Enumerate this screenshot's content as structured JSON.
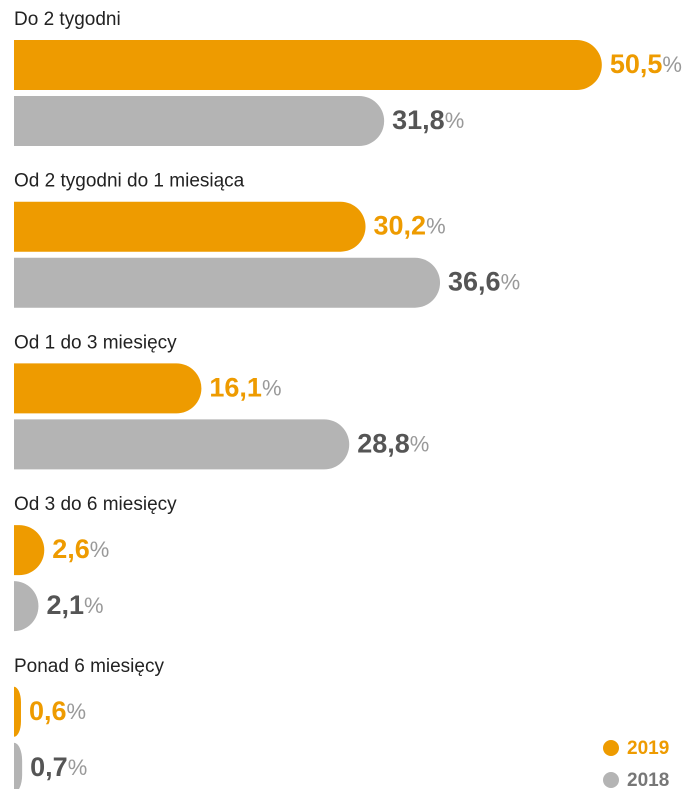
{
  "chart_data": {
    "type": "bar",
    "orientation": "horizontal",
    "categories": [
      "Do 2 tygodni",
      "Od 2 tygodni do 1 miesiąca",
      "Od 1 do 3 miesięcy",
      "Od 3 do 6 miesięcy",
      "Ponad 6 miesięcy"
    ],
    "unit": "%",
    "series": [
      {
        "name": "2019",
        "color": "#ee9b00",
        "values": [
          50.5,
          30.2,
          16.1,
          2.6,
          0.6
        ],
        "value_labels": [
          "50,5",
          "30,2",
          "16,1",
          "2,6",
          "0,6"
        ]
      },
      {
        "name": "2018",
        "color": "#b4b4b4",
        "values": [
          31.8,
          36.6,
          28.8,
          2.1,
          0.7
        ],
        "value_labels": [
          "31,8",
          "36,6",
          "28,8",
          "2,1",
          "0,7"
        ]
      }
    ],
    "legend": "bottom-right"
  }
}
